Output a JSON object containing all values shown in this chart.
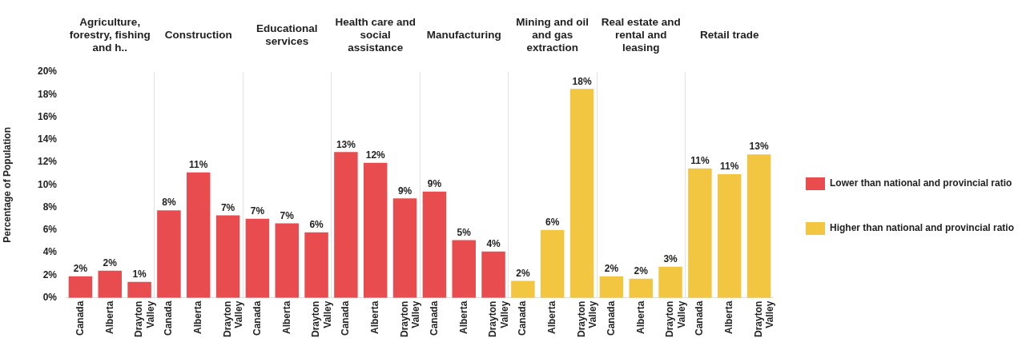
{
  "chart_data": {
    "type": "bar",
    "ylabel": "Percentage of Population",
    "categories": [
      "Canada",
      "Alberta",
      "Drayton Valley",
      "Canada",
      "Alberta",
      "Drayton Valley",
      "Canada",
      "Alberta",
      "Drayton Valley",
      "Canada",
      "Alberta",
      "Drayton Valley",
      "Canada",
      "Alberta",
      "Drayton Valley",
      "Canada",
      "Alberta",
      "Drayton Valley",
      "Canada",
      "Alberta",
      "Drayton Valley",
      "Canada",
      "Alberta",
      "Drayton Valley"
    ],
    "annotations": [
      "Agriculture, forestry, fishing and h..",
      "Construction",
      "Educational services",
      "Health care and social assistance",
      "Manufacturing",
      "Mining and oil and gas extraction",
      "Real estate and rental and leasing",
      "Retail trade"
    ],
    "ylim": [
      0,
      20
    ],
    "yticks": [
      {
        "value": 0,
        "label": "0%"
      },
      {
        "value": 2,
        "label": "2%"
      },
      {
        "value": 4,
        "label": "4%"
      },
      {
        "value": 6,
        "label": "6%"
      },
      {
        "value": 8,
        "label": "8%"
      },
      {
        "value": 10,
        "label": "10%"
      },
      {
        "value": 12,
        "label": "12%"
      },
      {
        "value": 14,
        "label": "14%"
      },
      {
        "value": 16,
        "label": "16%"
      },
      {
        "value": 18,
        "label": "18%"
      },
      {
        "value": 20,
        "label": "20%"
      }
    ],
    "legend": "right",
    "series": [
      {
        "name": "Lower than national and provincial ratio",
        "color": "#e84c4f",
        "values": [
          1.9,
          2.4,
          1.4,
          7.75,
          11.1,
          7.3,
          7.0,
          6.6,
          5.8,
          12.9,
          11.95,
          8.8,
          9.4,
          5.1,
          4.1,
          null,
          null,
          null,
          null,
          null,
          null,
          null,
          null,
          null
        ],
        "value_labels": [
          "2%",
          "2%",
          "1%",
          "8%",
          "11%",
          "7%",
          "7%",
          "7%",
          "6%",
          "13%",
          "12%",
          "9%",
          "9%",
          "5%",
          "4%",
          null,
          null,
          null,
          null,
          null,
          null,
          null,
          null,
          null
        ]
      },
      {
        "name": "Higher than national and provincial ratio",
        "color": "#f2c641",
        "values": [
          null,
          null,
          null,
          null,
          null,
          null,
          null,
          null,
          null,
          null,
          null,
          null,
          null,
          null,
          null,
          1.5,
          6.0,
          18.5,
          1.9,
          1.7,
          2.75,
          11.45,
          10.95,
          12.7
        ],
        "value_labels": [
          null,
          null,
          null,
          null,
          null,
          null,
          null,
          null,
          null,
          null,
          null,
          null,
          null,
          null,
          null,
          "2%",
          "6%",
          "18%",
          "2%",
          "2%",
          "3%",
          "11%",
          "11%",
          "13%"
        ]
      }
    ]
  }
}
